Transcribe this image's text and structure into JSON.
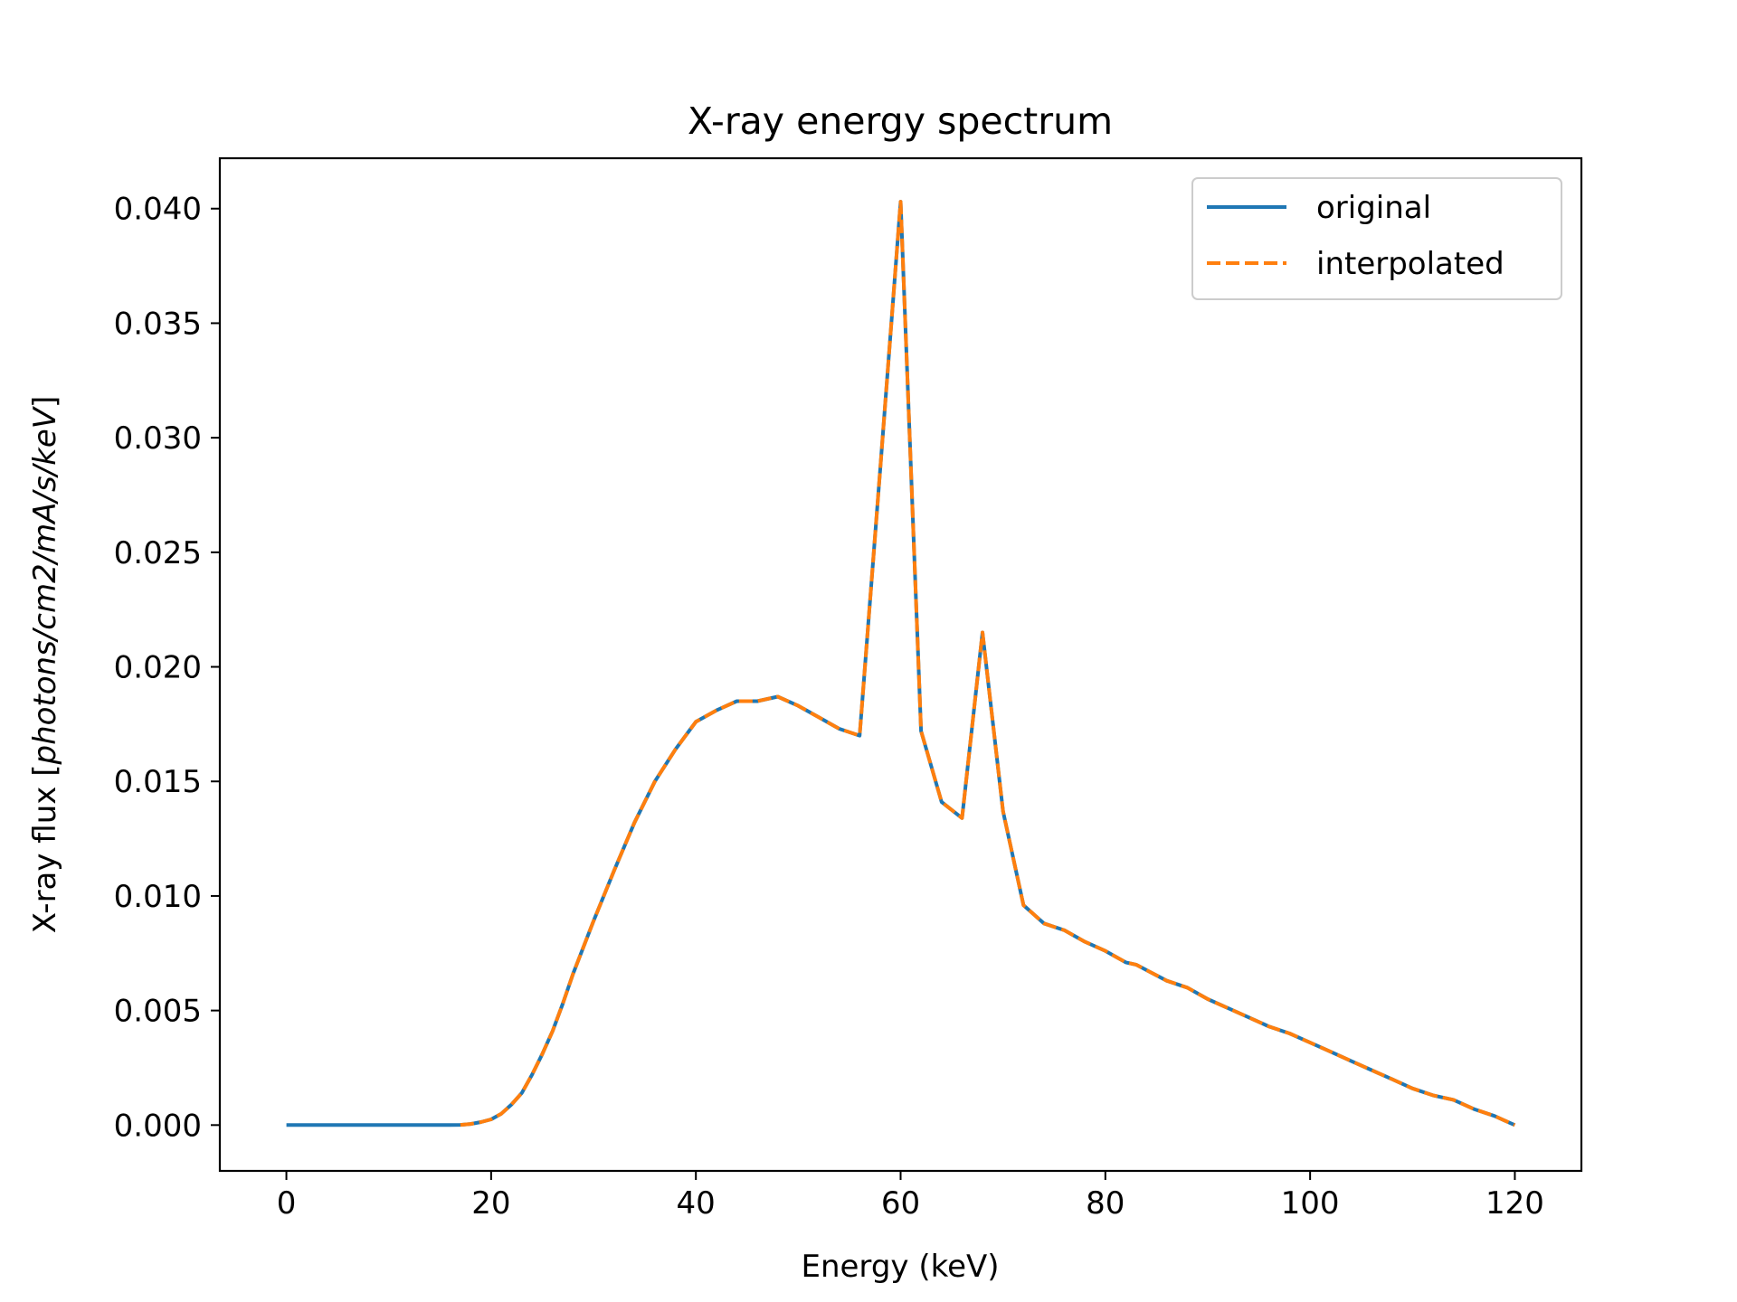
{
  "chart_data": {
    "type": "line",
    "title": "X-ray energy spectrum",
    "xlabel": "Energy (keV)",
    "ylabel_prefix": "X-ray flux [",
    "ylabel_unit": "photons/cm2/mA/s/keV",
    "ylabel_suffix": "]",
    "xlim": [
      -6.5,
      126.5
    ],
    "ylim": [
      -0.002,
      0.0422
    ],
    "x_ticks": [
      0,
      20,
      40,
      60,
      80,
      100,
      120
    ],
    "x_tick_labels": [
      "0",
      "20",
      "40",
      "60",
      "80",
      "100",
      "120"
    ],
    "y_ticks": [
      0.0,
      0.005,
      0.01,
      0.015,
      0.02,
      0.025,
      0.03,
      0.035,
      0.04
    ],
    "y_tick_labels": [
      "0.000",
      "0.005",
      "0.010",
      "0.015",
      "0.020",
      "0.025",
      "0.030",
      "0.035",
      "0.040"
    ],
    "grid": false,
    "legend_position": "top-right",
    "series": [
      {
        "name": "original",
        "color": "#1f77b4",
        "style": "solid",
        "x": [
          0,
          2,
          4,
          6,
          8,
          10,
          12,
          14,
          16,
          17,
          18,
          19,
          20,
          21,
          22,
          23,
          24,
          25,
          26,
          27,
          28,
          30,
          32,
          34,
          36,
          38,
          40,
          42,
          44,
          46,
          48,
          50,
          52,
          54,
          56,
          58,
          60,
          62,
          64,
          66,
          68,
          70,
          72,
          74,
          76,
          78,
          80,
          82,
          83,
          86,
          88,
          90,
          92,
          94,
          96,
          98,
          100,
          102,
          104,
          106,
          108,
          110,
          112,
          114,
          116,
          118,
          119,
          120
        ],
        "y": [
          0,
          0,
          0,
          0,
          0,
          0,
          0,
          0,
          0,
          1e-05,
          5e-05,
          0.00013,
          0.00025,
          0.0005,
          0.0009,
          0.0014,
          0.0022,
          0.0031,
          0.0041,
          0.0053,
          0.0066,
          0.0089,
          0.0111,
          0.0132,
          0.015,
          0.0164,
          0.0176,
          0.0181,
          0.0185,
          0.0185,
          0.0187,
          0.0183,
          0.0178,
          0.0173,
          0.017,
          0.0286,
          0.0403,
          0.0172,
          0.0141,
          0.0134,
          0.0215,
          0.0137,
          0.0096,
          0.0088,
          0.0085,
          0.008,
          0.0076,
          0.0071,
          0.007,
          0.0063,
          0.006,
          0.0055,
          0.0051,
          0.0047,
          0.0043,
          0.004,
          0.0036,
          0.0032,
          0.0028,
          0.0024,
          0.002,
          0.0016,
          0.0013,
          0.0011,
          0.0007,
          0.0004,
          0.0002,
          0.0
        ]
      },
      {
        "name": "interpolated",
        "color": "#ff7f0e",
        "style": "dashed",
        "x": [
          17,
          18,
          19,
          20,
          21,
          22,
          23,
          24,
          25,
          26,
          27,
          28,
          30,
          32,
          34,
          36,
          38,
          40,
          42,
          44,
          46,
          48,
          50,
          52,
          54,
          56,
          58,
          60,
          62,
          64,
          66,
          68,
          70,
          72,
          74,
          76,
          78,
          80,
          82,
          83,
          86,
          88,
          90,
          92,
          94,
          96,
          98,
          100,
          102,
          104,
          106,
          108,
          110,
          112,
          114,
          116,
          118,
          119,
          120
        ],
        "y": [
          1e-05,
          5e-05,
          0.00013,
          0.00025,
          0.0005,
          0.0009,
          0.0014,
          0.0022,
          0.0031,
          0.0041,
          0.0053,
          0.0066,
          0.0089,
          0.0111,
          0.0132,
          0.015,
          0.0164,
          0.0176,
          0.0181,
          0.0185,
          0.0185,
          0.0187,
          0.0183,
          0.0178,
          0.0173,
          0.017,
          0.0286,
          0.0403,
          0.0172,
          0.0141,
          0.0134,
          0.0215,
          0.0137,
          0.0096,
          0.0088,
          0.0085,
          0.008,
          0.0076,
          0.0071,
          0.007,
          0.0063,
          0.006,
          0.0055,
          0.0051,
          0.0047,
          0.0043,
          0.004,
          0.0036,
          0.0032,
          0.0028,
          0.0024,
          0.002,
          0.0016,
          0.0013,
          0.0011,
          0.0007,
          0.0004,
          0.0002,
          0.0
        ]
      }
    ]
  }
}
